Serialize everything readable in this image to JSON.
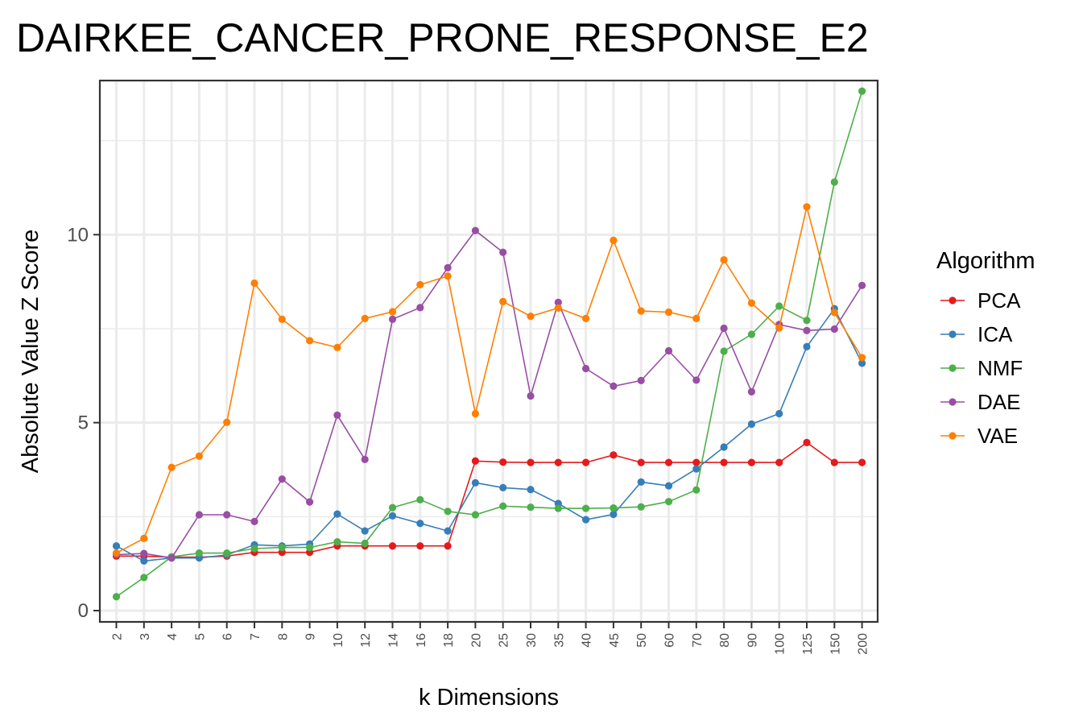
{
  "chart_data": {
    "type": "line",
    "title": "DAIRKEE_CANCER_PRONE_RESPONSE_E2",
    "xlabel": "k Dimensions",
    "ylabel": "Absolute Value Z Score",
    "ylim": [
      -0.3,
      14.1
    ],
    "yticks": [
      "0",
      "5",
      "10"
    ],
    "grid": true,
    "legend_position": "right",
    "legend_title": "Algorithm",
    "categories": [
      "2",
      "3",
      "4",
      "5",
      "6",
      "7",
      "8",
      "9",
      "10",
      "12",
      "14",
      "16",
      "18",
      "20",
      "25",
      "30",
      "35",
      "40",
      "45",
      "50",
      "60",
      "70",
      "80",
      "90",
      "100",
      "125",
      "150",
      "200"
    ],
    "series": [
      {
        "name": "PCA",
        "color": "#e41a1c",
        "values": [
          1.45,
          1.45,
          1.42,
          1.42,
          1.45,
          1.55,
          1.55,
          1.55,
          1.72,
          1.72,
          1.72,
          1.72,
          1.72,
          3.98,
          3.95,
          3.94,
          3.94,
          3.94,
          4.14,
          3.94,
          3.94,
          3.94,
          3.94,
          3.94,
          3.94,
          4.47,
          3.94,
          3.94
        ]
      },
      {
        "name": "ICA",
        "color": "#377eb8",
        "values": [
          1.72,
          1.32,
          1.4,
          1.4,
          1.48,
          1.75,
          1.72,
          1.77,
          2.57,
          2.12,
          2.52,
          2.32,
          2.12,
          3.4,
          3.27,
          3.22,
          2.85,
          2.42,
          2.56,
          3.42,
          3.32,
          3.77,
          4.35,
          4.96,
          5.24,
          7.02,
          8.03,
          6.58
        ]
      },
      {
        "name": "NMF",
        "color": "#4daf4a",
        "values": [
          0.37,
          0.88,
          1.43,
          1.53,
          1.53,
          1.65,
          1.68,
          1.68,
          1.83,
          1.79,
          2.74,
          2.95,
          2.64,
          2.55,
          2.78,
          2.75,
          2.72,
          2.72,
          2.73,
          2.76,
          2.9,
          3.21,
          6.9,
          7.35,
          8.1,
          7.72,
          11.4,
          13.82
        ]
      },
      {
        "name": "DAE",
        "color": "#984ea3",
        "values": [
          1.49,
          1.52,
          1.4,
          2.55,
          2.55,
          2.37,
          3.5,
          2.89,
          5.2,
          4.02,
          7.75,
          8.06,
          9.12,
          10.11,
          9.53,
          5.71,
          8.2,
          6.44,
          5.97,
          6.12,
          6.91,
          6.13,
          7.51,
          5.82,
          7.61,
          7.45,
          7.49,
          8.65
        ]
      },
      {
        "name": "VAE",
        "color": "#ff7f00",
        "values": [
          1.53,
          1.92,
          3.81,
          4.11,
          5.01,
          8.71,
          7.75,
          7.18,
          7.0,
          7.77,
          7.95,
          8.67,
          8.9,
          5.24,
          8.22,
          7.83,
          8.05,
          7.77,
          9.85,
          7.97,
          7.94,
          7.77,
          9.33,
          8.18,
          7.52,
          10.74,
          7.93,
          6.73
        ]
      }
    ]
  }
}
